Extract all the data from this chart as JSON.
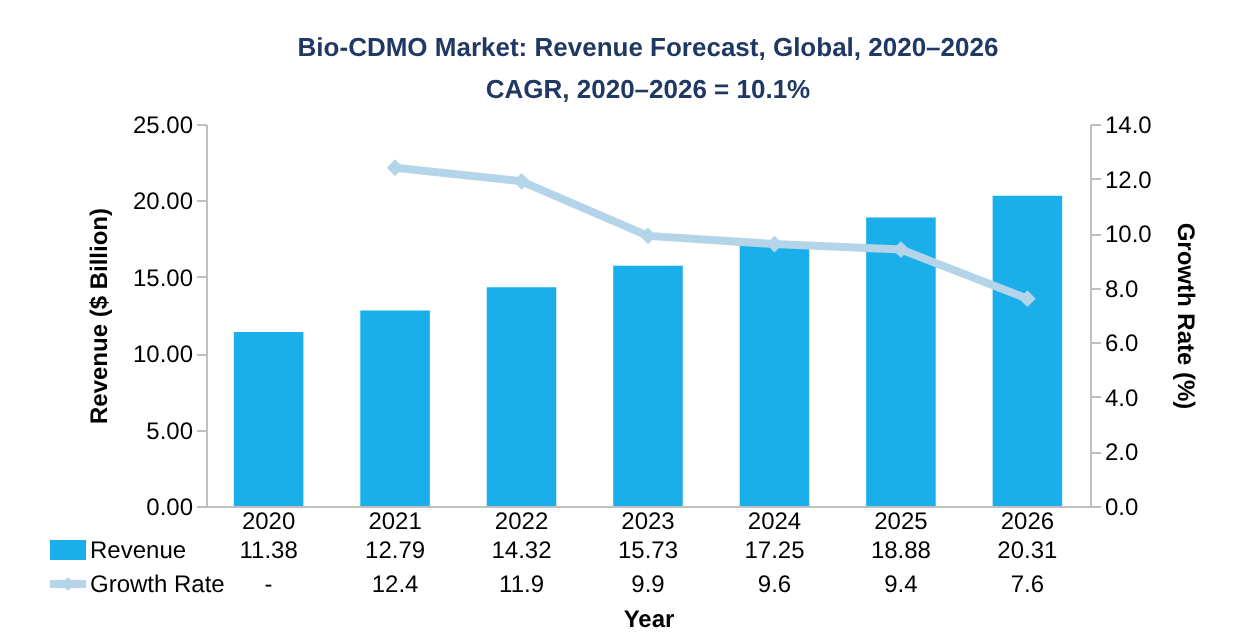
{
  "chart_data": {
    "type": "bar",
    "title": "Bio-CDMO Market: Revenue Forecast, Global, 2020–2026",
    "subtitle": "CAGR, 2020–2026 = 10.1%",
    "xlabel": "Year",
    "ylabel": "Revenue ($ Billion)",
    "y2label": "Growth Rate (%)",
    "categories": [
      "2020",
      "2021",
      "2022",
      "2023",
      "2024",
      "2025",
      "2026"
    ],
    "series": [
      {
        "name": "Revenue",
        "color": "#1aaeea",
        "values": [
          11.38,
          12.79,
          14.32,
          15.73,
          17.25,
          18.88,
          20.31
        ],
        "value_labels": [
          "11.38",
          "12.79",
          "14.32",
          "15.73",
          "17.25",
          "18.88",
          "20.31"
        ]
      },
      {
        "name": "Growth Rate",
        "type": "line",
        "axis": "y2",
        "color": "#b4d4ea",
        "marker": "diamond",
        "line_style": "solid",
        "values": [
          null,
          12.4,
          11.9,
          9.9,
          9.6,
          9.4,
          7.6
        ],
        "value_labels": [
          "-",
          "12.4",
          "11.9",
          "9.9",
          "9.6",
          "9.4",
          "7.6"
        ]
      }
    ],
    "ylim": [
      0,
      25
    ],
    "yticks": [
      {
        "value": 0,
        "label": "0.00"
      },
      {
        "value": 5,
        "label": "5.00"
      },
      {
        "value": 10,
        "label": "10.00"
      },
      {
        "value": 15,
        "label": "15.00"
      },
      {
        "value": 20,
        "label": "20.00"
      },
      {
        "value": 25,
        "label": "25.00"
      }
    ],
    "y2lim": [
      0,
      14
    ],
    "y2ticks": [
      {
        "value": 0,
        "label": "0.0"
      },
      {
        "value": 2,
        "label": "2.0"
      },
      {
        "value": 4,
        "label": "4.0"
      },
      {
        "value": 6,
        "label": "6.0"
      },
      {
        "value": 8,
        "label": "8.0"
      },
      {
        "value": 10,
        "label": "10.0"
      },
      {
        "value": 12,
        "label": "12.0"
      },
      {
        "value": 14,
        "label": "14.0"
      }
    ],
    "grid": false,
    "legend": "bottom"
  }
}
